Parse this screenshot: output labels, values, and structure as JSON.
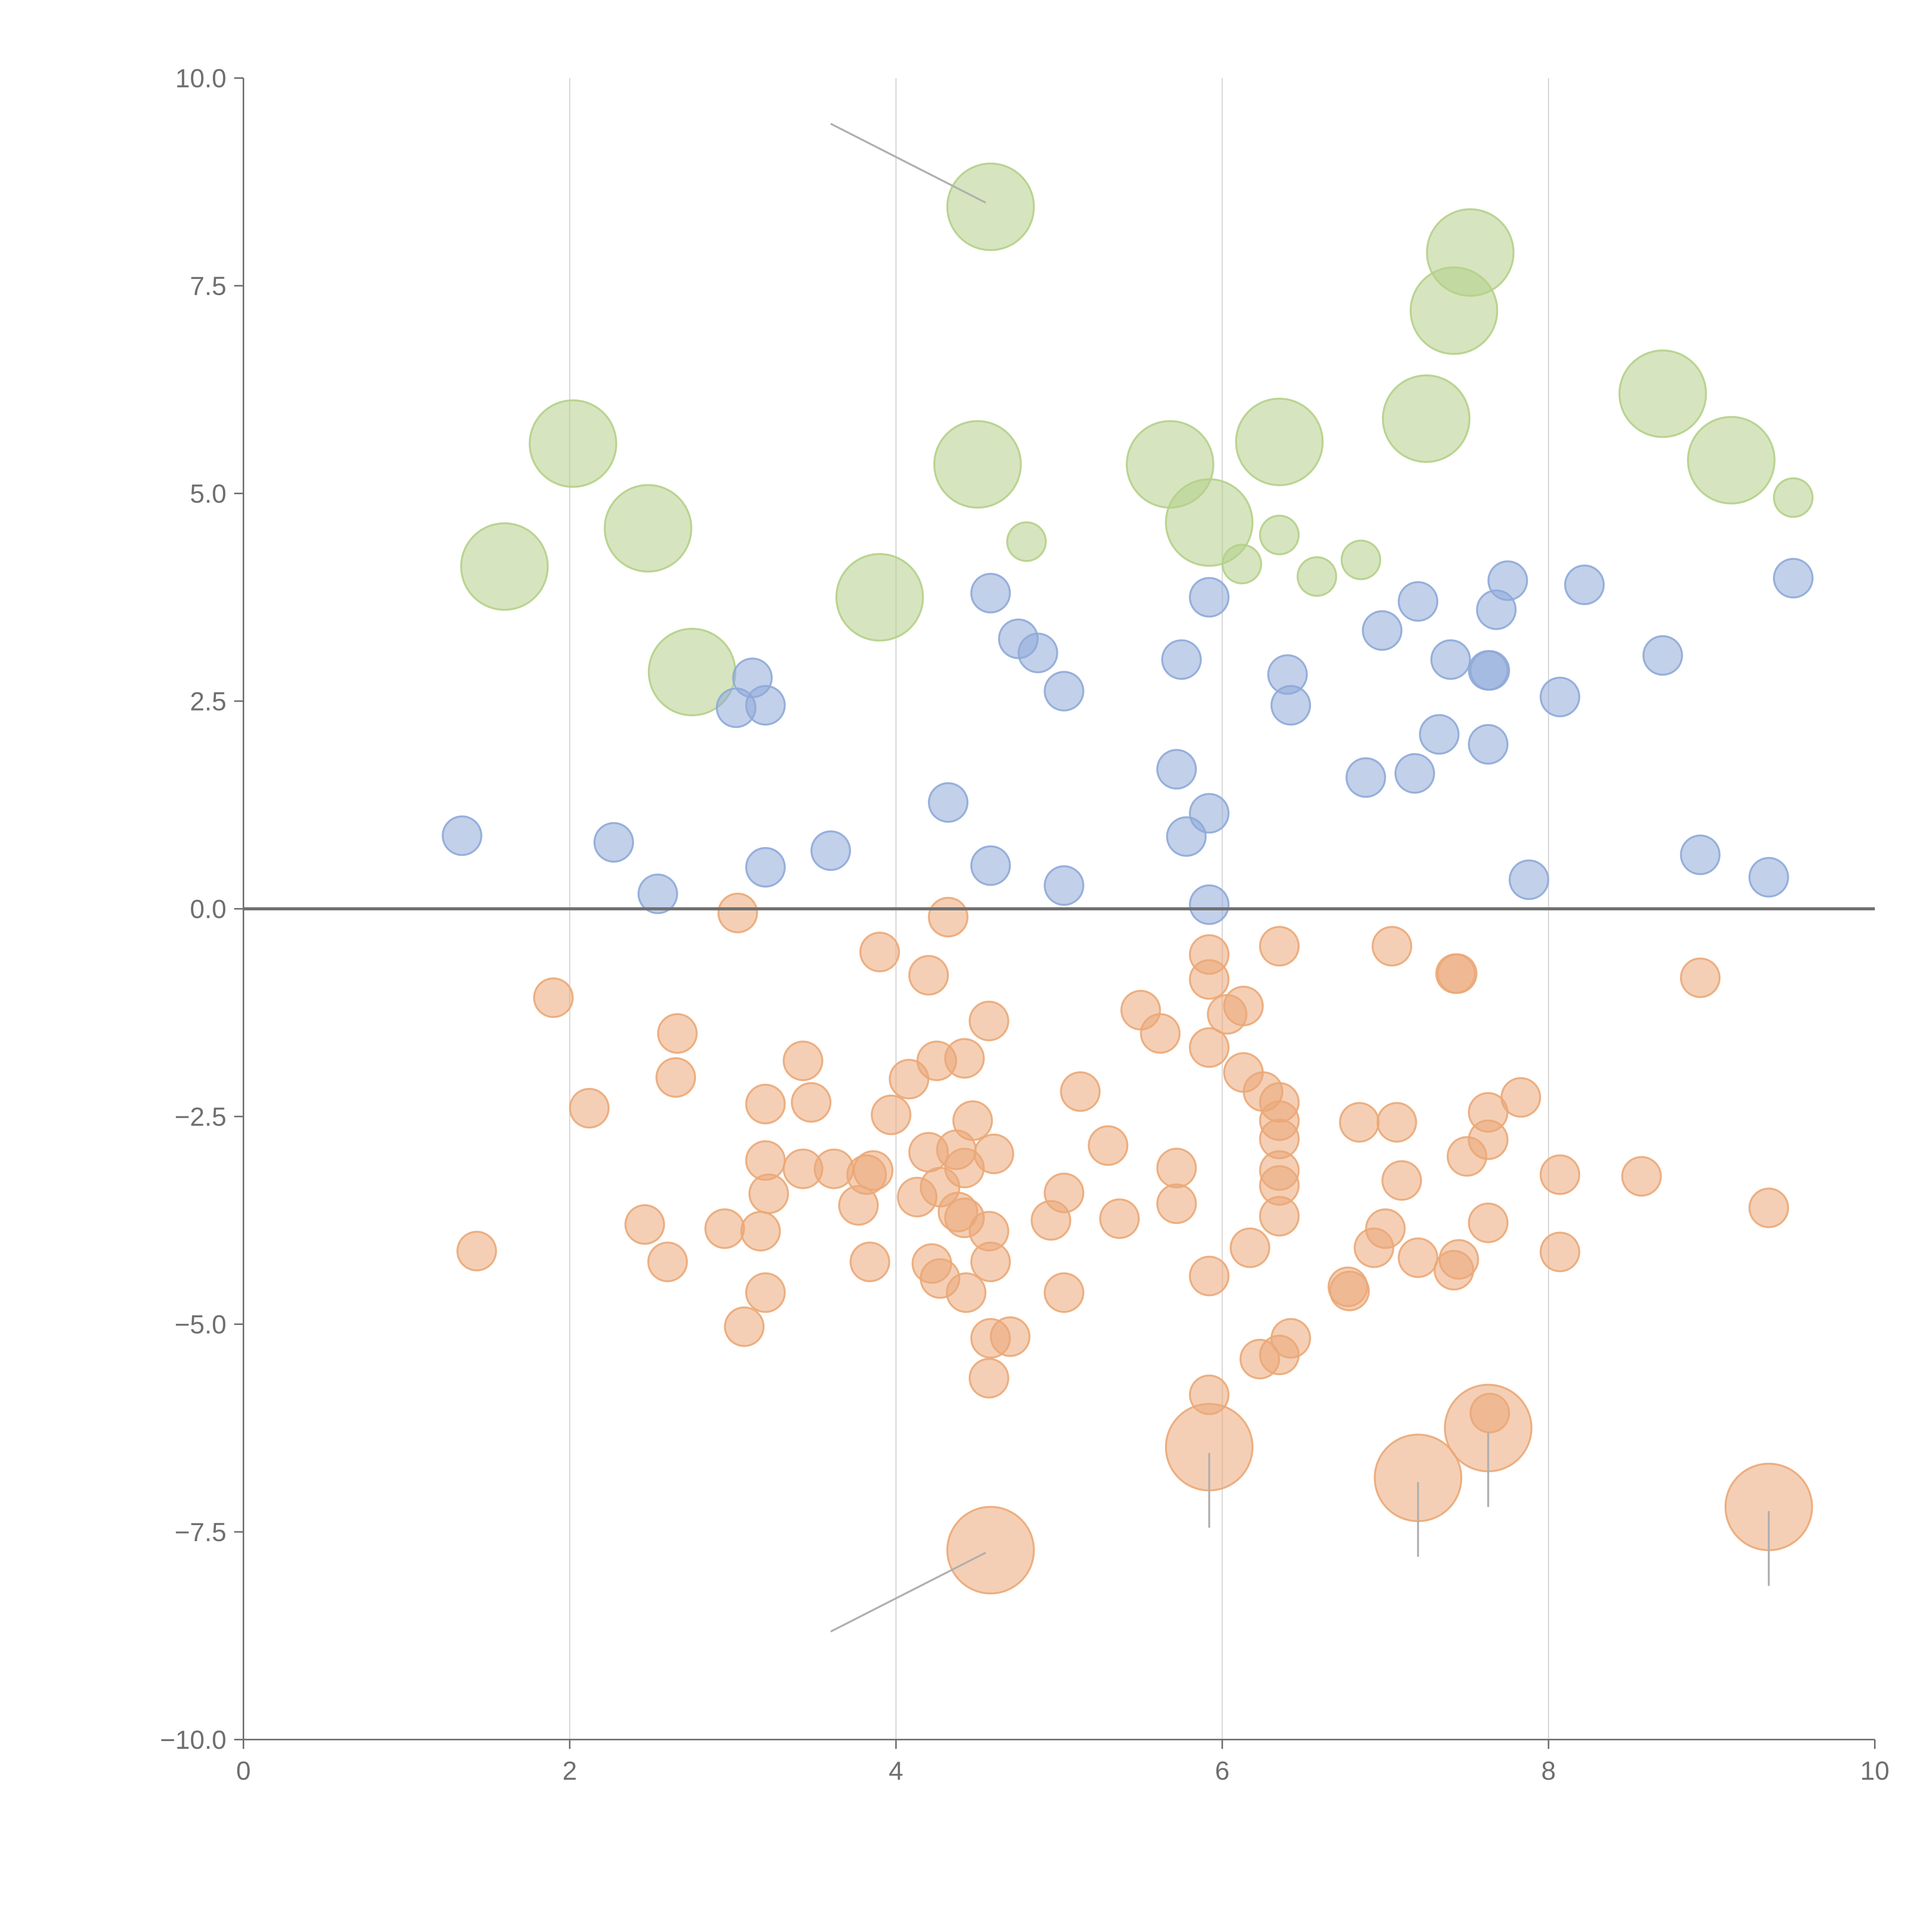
{
  "chart_data": {
    "type": "scatter",
    "title": "",
    "xlabel": "",
    "ylabel": "",
    "xlim": [
      0,
      10
    ],
    "ylim": [
      -10,
      10
    ],
    "x_ticks": [
      "0",
      "2",
      "4",
      "6",
      "8",
      "10"
    ],
    "y_ticks": [
      "10.0",
      "7.5",
      "5.0",
      "2.5",
      "0.0",
      "−2.5",
      "−5.0",
      "−7.5",
      "−10.0"
    ],
    "x_tick_values": [
      0,
      2,
      4,
      6,
      8,
      10
    ],
    "y_tick_values": [
      10,
      7.5,
      5,
      2.5,
      0,
      -2.5,
      -5,
      -7.5,
      -10
    ],
    "vertical_grid_at": [
      2,
      4,
      6,
      8
    ],
    "zero_line": true,
    "colors": {
      "green": "#b5d08a",
      "blue": "#8faad8",
      "orange": "#eba878",
      "axis": "#707070",
      "grid": "#d6d6d6"
    },
    "series": [
      {
        "name": "green",
        "color": "#b5d08a",
        "points": [
          [
            4.58,
            8.45,
            2
          ],
          [
            7.52,
            7.9,
            2
          ],
          [
            7.42,
            7.2,
            2
          ],
          [
            8.7,
            6.2,
            2
          ],
          [
            7.25,
            5.9,
            2
          ],
          [
            2.02,
            5.6,
            2
          ],
          [
            6.35,
            5.62,
            2
          ],
          [
            4.5,
            5.35,
            2
          ],
          [
            5.68,
            5.35,
            2
          ],
          [
            9.12,
            5.4,
            2
          ],
          [
            5.92,
            4.65,
            2
          ],
          [
            2.48,
            4.58,
            2
          ],
          [
            1.6,
            4.12,
            2
          ],
          [
            3.9,
            3.75,
            2
          ],
          [
            2.75,
            2.85,
            2
          ],
          [
            9.5,
            4.95,
            1
          ],
          [
            4.8,
            4.42,
            1
          ],
          [
            6.35,
            4.5,
            1
          ],
          [
            6.85,
            4.2,
            1
          ],
          [
            6.12,
            4.15,
            1
          ],
          [
            6.58,
            4.0,
            1
          ]
        ]
      },
      {
        "name": "blue",
        "color": "#8faad8",
        "points": [
          [
            4.58,
            3.8,
            1
          ],
          [
            5.92,
            3.75,
            1
          ],
          [
            7.75,
            3.95,
            1
          ],
          [
            8.22,
            3.9,
            1
          ],
          [
            9.5,
            3.98,
            1
          ],
          [
            7.2,
            3.7,
            1
          ],
          [
            7.68,
            3.6,
            1
          ],
          [
            6.98,
            3.35,
            1
          ],
          [
            4.75,
            3.25,
            1
          ],
          [
            4.87,
            3.08,
            1
          ],
          [
            5.75,
            3.0,
            1
          ],
          [
            7.4,
            3.0,
            1
          ],
          [
            8.7,
            3.05,
            1
          ],
          [
            3.12,
            2.78,
            1
          ],
          [
            6.4,
            2.82,
            1
          ],
          [
            7.63,
            2.87,
            1
          ],
          [
            7.64,
            2.87,
            1
          ],
          [
            5.03,
            2.62,
            1
          ],
          [
            8.07,
            2.55,
            1
          ],
          [
            3.02,
            2.42,
            1
          ],
          [
            3.2,
            2.45,
            1
          ],
          [
            6.42,
            2.45,
            1
          ],
          [
            7.33,
            2.1,
            1
          ],
          [
            7.63,
            1.98,
            1
          ],
          [
            5.72,
            1.68,
            1
          ],
          [
            6.88,
            1.58,
            1
          ],
          [
            7.18,
            1.63,
            1
          ],
          [
            4.32,
            1.28,
            1
          ],
          [
            5.92,
            1.15,
            1
          ],
          [
            5.78,
            0.87,
            1
          ],
          [
            1.34,
            0.88,
            1
          ],
          [
            2.27,
            0.8,
            1
          ],
          [
            3.6,
            0.7,
            1
          ],
          [
            8.93,
            0.65,
            1
          ],
          [
            3.2,
            0.5,
            1
          ],
          [
            4.58,
            0.52,
            1
          ],
          [
            7.88,
            0.35,
            1
          ],
          [
            9.35,
            0.38,
            1
          ],
          [
            5.03,
            0.28,
            1
          ],
          [
            2.54,
            0.18,
            1
          ],
          [
            5.92,
            0.05,
            1
          ]
        ]
      },
      {
        "name": "orange",
        "color": "#eba878",
        "points": [
          [
            3.03,
            -0.05,
            1
          ],
          [
            4.32,
            -0.1,
            1
          ],
          [
            3.9,
            -0.52,
            1
          ],
          [
            5.92,
            -0.55,
            1
          ],
          [
            6.35,
            -0.45,
            1
          ],
          [
            7.04,
            -0.45,
            1
          ],
          [
            7.43,
            -0.78,
            1
          ],
          [
            7.44,
            -0.78,
            1
          ],
          [
            4.2,
            -0.8,
            1
          ],
          [
            5.92,
            -0.85,
            1
          ],
          [
            8.93,
            -0.83,
            1
          ],
          [
            1.9,
            -1.07,
            1
          ],
          [
            5.5,
            -1.22,
            1
          ],
          [
            6.03,
            -1.27,
            1
          ],
          [
            6.13,
            -1.17,
            1
          ],
          [
            4.57,
            -1.35,
            1
          ],
          [
            2.66,
            -1.5,
            1
          ],
          [
            5.62,
            -1.5,
            1
          ],
          [
            5.92,
            -1.67,
            1
          ],
          [
            3.43,
            -1.83,
            1
          ],
          [
            4.25,
            -1.83,
            1
          ],
          [
            4.42,
            -1.8,
            1
          ],
          [
            6.13,
            -1.97,
            1
          ],
          [
            2.65,
            -2.03,
            1
          ],
          [
            4.08,
            -2.05,
            1
          ],
          [
            5.13,
            -2.2,
            1
          ],
          [
            6.25,
            -2.2,
            1
          ],
          [
            6.35,
            -2.33,
            1
          ],
          [
            7.83,
            -2.27,
            1
          ],
          [
            2.12,
            -2.4,
            1
          ],
          [
            3.2,
            -2.35,
            1
          ],
          [
            3.48,
            -2.33,
            1
          ],
          [
            3.97,
            -2.48,
            1
          ],
          [
            7.63,
            -2.45,
            1
          ],
          [
            4.47,
            -2.55,
            1
          ],
          [
            6.35,
            -2.55,
            1
          ],
          [
            6.84,
            -2.57,
            1
          ],
          [
            7.07,
            -2.57,
            1
          ],
          [
            6.35,
            -2.77,
            1
          ],
          [
            7.63,
            -2.78,
            1
          ],
          [
            5.3,
            -2.85,
            1
          ],
          [
            4.2,
            -2.93,
            1
          ],
          [
            4.37,
            -2.9,
            1
          ],
          [
            4.6,
            -2.95,
            1
          ],
          [
            7.5,
            -2.98,
            1
          ],
          [
            3.2,
            -3.03,
            1
          ],
          [
            3.43,
            -3.13,
            1
          ],
          [
            3.62,
            -3.13,
            1
          ],
          [
            3.86,
            -3.15,
            1
          ],
          [
            3.82,
            -3.2,
            1
          ],
          [
            4.42,
            -3.12,
            1
          ],
          [
            5.72,
            -3.12,
            1
          ],
          [
            6.35,
            -3.15,
            1
          ],
          [
            8.07,
            -3.2,
            1
          ],
          [
            8.57,
            -3.22,
            1
          ],
          [
            7.1,
            -3.27,
            1
          ],
          [
            4.27,
            -3.35,
            1
          ],
          [
            6.35,
            -3.33,
            1
          ],
          [
            5.03,
            -3.42,
            1
          ],
          [
            3.22,
            -3.43,
            1
          ],
          [
            4.13,
            -3.47,
            1
          ],
          [
            3.77,
            -3.57,
            1
          ],
          [
            5.72,
            -3.55,
            1
          ],
          [
            9.35,
            -3.6,
            1
          ],
          [
            4.38,
            -3.65,
            1
          ],
          [
            4.42,
            -3.72,
            1
          ],
          [
            6.35,
            -3.7,
            1
          ],
          [
            4.95,
            -3.75,
            1
          ],
          [
            5.37,
            -3.73,
            1
          ],
          [
            7.63,
            -3.78,
            1
          ],
          [
            2.46,
            -3.8,
            1
          ],
          [
            2.95,
            -3.85,
            1
          ],
          [
            3.17,
            -3.88,
            1
          ],
          [
            4.57,
            -3.88,
            1
          ],
          [
            7.0,
            -3.85,
            1
          ],
          [
            6.93,
            -4.08,
            1
          ],
          [
            6.17,
            -4.08,
            1
          ],
          [
            8.07,
            -4.13,
            1
          ],
          [
            1.43,
            -4.12,
            1
          ],
          [
            2.6,
            -4.25,
            1
          ],
          [
            3.84,
            -4.25,
            1
          ],
          [
            4.22,
            -4.27,
            1
          ],
          [
            4.58,
            -4.25,
            1
          ],
          [
            7.2,
            -4.2,
            1
          ],
          [
            7.45,
            -4.22,
            1
          ],
          [
            7.42,
            -4.35,
            1
          ],
          [
            4.27,
            -4.45,
            1
          ],
          [
            5.92,
            -4.42,
            1
          ],
          [
            4.43,
            -4.62,
            1
          ],
          [
            3.2,
            -4.62,
            1
          ],
          [
            5.03,
            -4.62,
            1
          ],
          [
            6.78,
            -4.6,
            1
          ],
          [
            6.77,
            -4.55,
            1
          ],
          [
            3.07,
            -5.03,
            1
          ],
          [
            4.58,
            -5.17,
            1
          ],
          [
            4.7,
            -5.15,
            1
          ],
          [
            6.42,
            -5.17,
            1
          ],
          [
            6.35,
            -5.37,
            1
          ],
          [
            6.23,
            -5.42,
            1
          ],
          [
            4.57,
            -5.65,
            1
          ],
          [
            5.92,
            -5.85,
            1
          ],
          [
            7.64,
            -6.07,
            1
          ],
          [
            7.63,
            -6.25,
            2
          ],
          [
            5.92,
            -6.48,
            2
          ],
          [
            7.2,
            -6.85,
            2
          ],
          [
            9.35,
            -7.2,
            2
          ],
          [
            4.58,
            -7.72,
            2
          ]
        ]
      }
    ],
    "leader_lines": [
      [
        4.55,
        8.5,
        3.6,
        9.45
      ],
      [
        4.55,
        -7.75,
        3.6,
        -8.7
      ],
      [
        5.92,
        -6.55,
        5.92,
        -7.45
      ],
      [
        7.2,
        -6.9,
        7.2,
        -7.8
      ],
      [
        7.63,
        -6.3,
        7.63,
        -7.2
      ],
      [
        9.35,
        -7.25,
        9.35,
        -8.15
      ]
    ]
  }
}
